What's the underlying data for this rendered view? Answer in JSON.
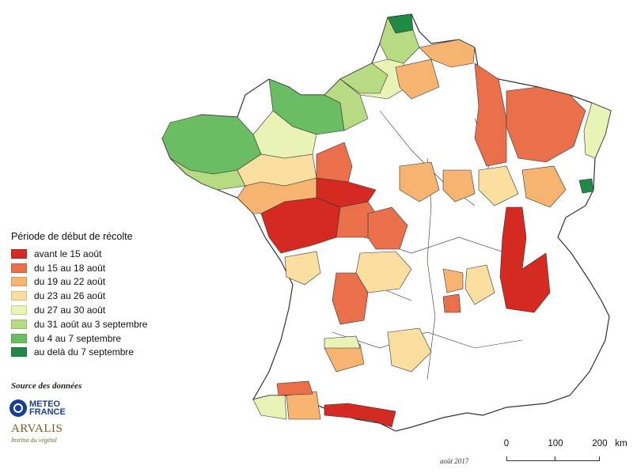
{
  "legend": {
    "title": "Période de début de récolte",
    "items": [
      {
        "label": "avant le 15 août",
        "color": "#d42a22"
      },
      {
        "label": "du 15 au 18 août",
        "color": "#e9704a"
      },
      {
        "label": "du 19 au 22 août",
        "color": "#f6b470"
      },
      {
        "label": "du 23 au 26 août",
        "color": "#fbdfa1"
      },
      {
        "label": "du 27 au 30 août",
        "color": "#e9f3b5"
      },
      {
        "label": "du 31 août au 3 septembre",
        "color": "#b6db83"
      },
      {
        "label": "du 4 au 7 septembre",
        "color": "#6bbd63"
      },
      {
        "label": "au delà du 7 septembre",
        "color": "#1f8a45"
      }
    ]
  },
  "source": {
    "label": "Source des données",
    "meteo_line1": "METEO",
    "meteo_line2": "FRANCE",
    "arvalis_name": "ARVALIS",
    "arvalis_sub": "Institut du végétal"
  },
  "date_note": "août 2017",
  "scale": {
    "labels": [
      "0",
      "100",
      "200",
      "km"
    ]
  },
  "colors": {
    "outline": "#333333",
    "no_data": "#ffffff"
  }
}
